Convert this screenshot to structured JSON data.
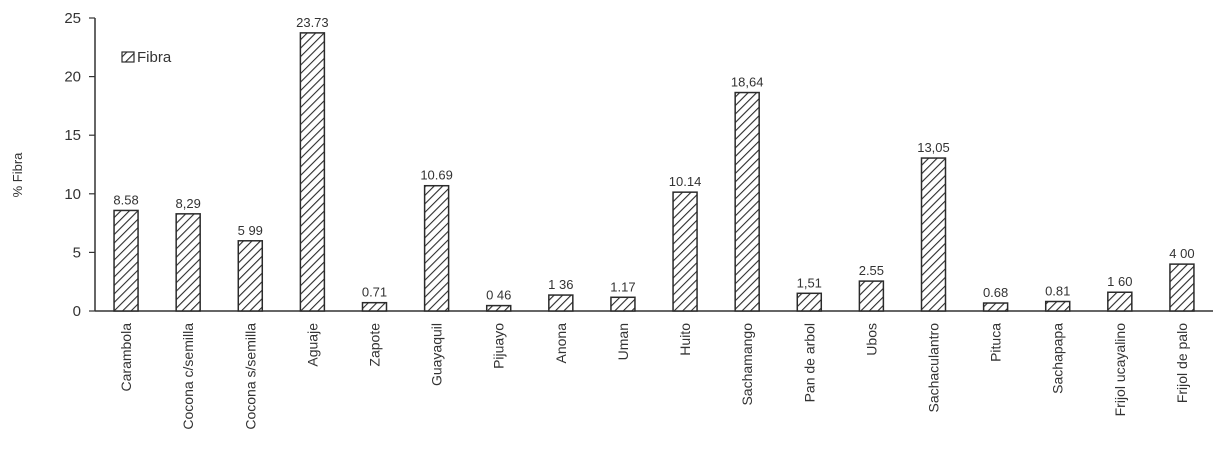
{
  "chart_data": {
    "type": "bar",
    "ylabel": "% Fibra",
    "ylim": [
      0,
      25
    ],
    "yticks": [
      0,
      5,
      10,
      15,
      20,
      25
    ],
    "grid": false,
    "legend": {
      "position": "top-left",
      "label": "Fibra"
    },
    "categories": [
      "Carambola",
      "Cocona c/semilla",
      "Cocona s/semilla",
      "Aguaje",
      "Zapote",
      "Guayaquil",
      "Pijuayo",
      "Anona",
      "Uman",
      "Huito",
      "Sachamango",
      "Pan de arbol",
      "Ubos",
      "Sachaculantro",
      "Pituca",
      "Sachapapa",
      "Frijol ucayalino",
      "Frijol de palo"
    ],
    "values": [
      8.58,
      8.29,
      5.99,
      23.73,
      0.71,
      10.69,
      0.46,
      1.36,
      1.17,
      10.14,
      18.64,
      1.51,
      2.55,
      13.05,
      0.68,
      0.81,
      1.6,
      4.0
    ],
    "value_labels": [
      "8.58",
      "8,29",
      "5 99",
      "23.73",
      "0.71",
      "10.69",
      "0 46",
      "1 36",
      "1.17",
      "10.14",
      "18,64",
      "1,51",
      "2.55",
      "13,05",
      "0.68",
      "0.81",
      "1 60",
      "4 00"
    ],
    "colors": {
      "bar_stroke": "#2b2b2b",
      "hatch": "#2b2b2b",
      "fill": "#ffffff"
    }
  }
}
